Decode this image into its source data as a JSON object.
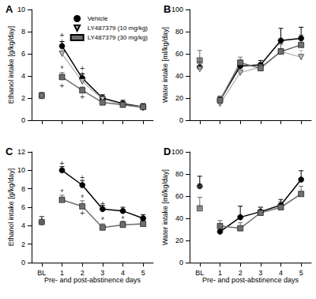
{
  "chart_data": [
    {
      "type": "line",
      "label": "A",
      "ylabel": "Ethanol intake [g/kg/day]",
      "categories": [
        "BL",
        "1",
        "2",
        "3",
        "4",
        "5"
      ],
      "ylim": [
        0,
        10
      ],
      "yticks": [
        0,
        2,
        4,
        6,
        8,
        10
      ],
      "tick_labels": "y",
      "legend": "upper right",
      "series": [
        {
          "name": "Vehicle",
          "color": "#000000",
          "marker": "circle",
          "values": [
            2.2,
            6.7,
            3.8,
            2.0,
            1.5,
            1.2
          ],
          "errors": [
            0.3,
            0.4,
            0.4,
            0.3,
            0.3,
            0.3
          ]
        },
        {
          "name": "LY487379 (10 mg/kg)",
          "color": "#bdbdbd",
          "marker": "triangle_down",
          "values": [
            2.2,
            6.0,
            3.5,
            1.9,
            1.4,
            1.1
          ],
          "errors": [
            0.3,
            0.4,
            0.4,
            0.3,
            0.2,
            0.2
          ]
        },
        {
          "name": "LY487379 (30 mg/kg)",
          "color": "#6e6e6e",
          "marker": "square",
          "values": [
            2.2,
            3.9,
            2.7,
            1.6,
            1.4,
            1.2
          ],
          "errors": [
            0.3,
            0.4,
            0.3,
            0.3,
            0.2,
            0.3
          ]
        }
      ],
      "annotations": [
        {
          "x": "1",
          "y": 7.7,
          "text": "+"
        },
        {
          "x": "1",
          "y": 7.1,
          "text": "+"
        },
        {
          "x": "1",
          "y": 4.6,
          "text": "*"
        },
        {
          "x": "1",
          "y": 3.1,
          "text": "+"
        },
        {
          "x": "2",
          "y": 4.7,
          "text": "+"
        },
        {
          "x": "2",
          "y": 4.2,
          "text": "+"
        },
        {
          "x": "2",
          "y": 2.1,
          "text": "+"
        }
      ]
    },
    {
      "type": "line",
      "label": "B",
      "ylabel": "Water intake [ml/kg/day]",
      "categories": [
        "BL",
        "1",
        "2",
        "3",
        "4",
        "5"
      ],
      "ylim": [
        0,
        100
      ],
      "yticks": [
        0,
        20,
        40,
        60,
        80,
        100
      ],
      "tick_labels": "y",
      "series": [
        {
          "name": "Vehicle",
          "color": "#000000",
          "marker": "circle",
          "values": [
            48,
            18,
            49,
            50,
            72,
            74
          ],
          "errors": [
            5,
            3,
            5,
            4,
            11,
            10
          ]
        },
        {
          "name": "LY487379 (10 mg/kg)",
          "color": "#bdbdbd",
          "marker": "triangle_down",
          "values": [
            46,
            15,
            43,
            48,
            62,
            57
          ],
          "errors": [
            5,
            3,
            5,
            4,
            6,
            6
          ]
        },
        {
          "name": "LY487379 (30 mg/kg)",
          "color": "#6e6e6e",
          "marker": "square",
          "values": [
            54,
            18,
            52,
            47,
            62,
            68
          ],
          "errors": [
            9,
            4,
            5,
            4,
            7,
            9
          ]
        }
      ]
    },
    {
      "type": "line",
      "label": "C",
      "ylabel": "Ethanol intake [g/kg/day]",
      "xlabel": "Pre- and post-abstinence days",
      "categories": [
        "BL",
        "1",
        "2",
        "3",
        "4",
        "5"
      ],
      "ylim": [
        0,
        12
      ],
      "yticks": [
        0,
        2,
        4,
        6,
        8,
        10,
        12
      ],
      "series": [
        {
          "name": "Vehicle",
          "color": "#000000",
          "marker": "circle",
          "values": [
            4.4,
            10.0,
            8.4,
            5.8,
            5.6,
            4.8
          ],
          "errors": [
            0.6,
            0.4,
            0.5,
            0.4,
            0.4,
            0.4
          ]
        },
        {
          "name": "LY487379 (30 mg/kg)",
          "color": "#6e6e6e",
          "marker": "square",
          "values": [
            4.4,
            6.8,
            6.1,
            3.8,
            4.1,
            4.2
          ],
          "errors": [
            0.6,
            0.5,
            0.6,
            0.4,
            0.4,
            0.4
          ]
        }
      ],
      "annotations": [
        {
          "x": "1",
          "y": 10.8,
          "text": "+"
        },
        {
          "x": "1",
          "y": 7.6,
          "text": "*"
        },
        {
          "x": "2",
          "y": 9.2,
          "text": "+"
        },
        {
          "x": "2",
          "y": 7.0,
          "text": "*"
        },
        {
          "x": "2",
          "y": 5.4,
          "text": "+"
        },
        {
          "x": "3",
          "y": 6.4,
          "text": "+"
        },
        {
          "x": "3",
          "y": 4.6,
          "text": "*"
        },
        {
          "x": "4",
          "y": 4.7,
          "text": "*"
        }
      ]
    },
    {
      "type": "line",
      "label": "D",
      "ylabel": "Water intake [ml/kg/day]",
      "xlabel": "Pre- and post-abstinence days",
      "categories": [
        "BL",
        "1",
        "2",
        "3",
        "4",
        "5"
      ],
      "ylim": [
        0,
        100
      ],
      "yticks": [
        0,
        20,
        40,
        60,
        80,
        100
      ],
      "series": [
        {
          "name": "Vehicle",
          "color": "#000000",
          "marker": "circle",
          "values": [
            69,
            28,
            41,
            46,
            52,
            75
          ],
          "errors": [
            9,
            4,
            10,
            4,
            5,
            8
          ]
        },
        {
          "name": "LY487379 (30 mg/kg)",
          "color": "#6e6e6e",
          "marker": "square",
          "values": [
            49,
            33,
            31,
            45,
            50,
            62
          ],
          "errors": [
            10,
            5,
            5,
            5,
            5,
            7
          ]
        }
      ]
    }
  ]
}
